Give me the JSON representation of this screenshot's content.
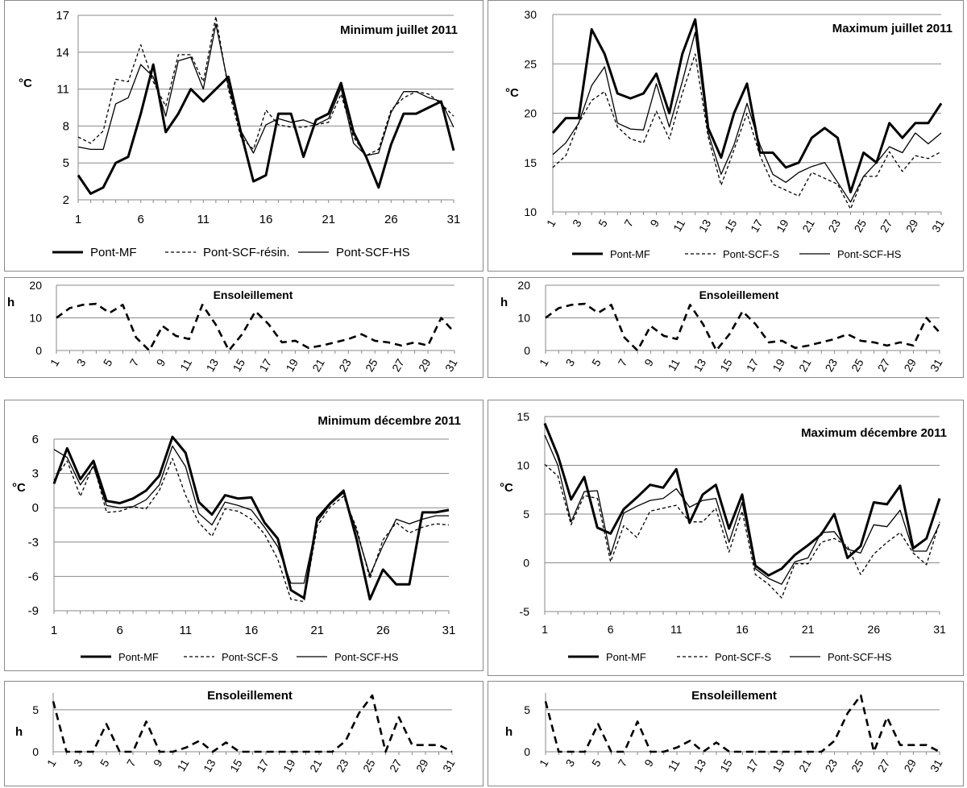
{
  "sun_july": [
    10,
    13,
    14,
    14.3,
    11.5,
    14,
    4,
    0,
    7.5,
    4.5,
    3.5,
    14,
    8,
    0,
    5,
    12,
    8,
    2.5,
    3,
    0.8,
    1.5,
    2.5,
    3.5,
    5,
    3,
    2.5,
    1.5,
    2.5,
    1.5,
    10,
    5.5
  ],
  "sun_dec": [
    6,
    0,
    0,
    0,
    3.3,
    0,
    0,
    3.6,
    0,
    0,
    0.5,
    1.3,
    0,
    1.1,
    0,
    0,
    0,
    0,
    0,
    0,
    0,
    0,
    1.3,
    4.6,
    6.7,
    0,
    4.1,
    0.8,
    0.8,
    0.8,
    0
  ],
  "chart_data": [
    {
      "type": "line",
      "title": "Minimum juillet 2011",
      "ylabel": "°C",
      "ylim": [
        2,
        17
      ],
      "yticks": [
        "2",
        "5",
        "8",
        "11",
        "14",
        "17"
      ],
      "xticks": [
        "1",
        "6",
        "11",
        "16",
        "21",
        "26",
        "31"
      ],
      "x": [
        1,
        2,
        3,
        4,
        5,
        6,
        7,
        8,
        9,
        10,
        11,
        12,
        13,
        14,
        15,
        16,
        17,
        18,
        19,
        20,
        21,
        22,
        23,
        24,
        25,
        26,
        27,
        28,
        29,
        30,
        31
      ],
      "series": [
        {
          "name": "Pont-MF",
          "values": [
            4,
            2.5,
            3,
            5,
            5.5,
            9,
            13,
            7.5,
            9,
            11,
            10,
            11,
            12,
            7.5,
            3.5,
            4,
            9,
            9,
            5.5,
            8.5,
            9,
            11.5,
            7.5,
            5.5,
            3,
            6.5,
            9,
            9,
            9.5,
            10,
            6
          ]
        },
        {
          "name": "Pont-SCF-résin.",
          "values": [
            7.1,
            6.6,
            7.6,
            11.8,
            11.6,
            14.6,
            11.6,
            9.6,
            13.8,
            13.8,
            11.6,
            16.9,
            11,
            7.1,
            6.1,
            9.3,
            8.1,
            7.9,
            7.9,
            8.1,
            8.3,
            10.6,
            7.1,
            5.6,
            6.1,
            9.3,
            10.3,
            10.8,
            10.6,
            9.8,
            8.8
          ]
        },
        {
          "name": "Pont-SCF-HS",
          "values": [
            6.3,
            6.1,
            6.1,
            9.8,
            10.3,
            13,
            12,
            8.8,
            13.3,
            13.6,
            11,
            16.3,
            11.3,
            7.6,
            5.8,
            8.1,
            8.6,
            8.3,
            8.5,
            8.1,
            8.6,
            11.1,
            6.6,
            5.6,
            5.8,
            9.1,
            10.8,
            10.8,
            10.3,
            10,
            7.9
          ]
        }
      ]
    },
    {
      "type": "line",
      "title": "Maximum juillet 2011",
      "ylabel": "°C",
      "ylim": [
        10,
        30
      ],
      "yticks": [
        "10",
        "15",
        "20",
        "25",
        "30"
      ],
      "xticks": [
        "1",
        "3",
        "5",
        "7",
        "9",
        "11",
        "13",
        "15",
        "17",
        "19",
        "21",
        "23",
        "25",
        "27",
        "29",
        "31"
      ],
      "x": [
        1,
        2,
        3,
        4,
        5,
        6,
        7,
        8,
        9,
        10,
        11,
        12,
        13,
        14,
        15,
        16,
        17,
        18,
        19,
        20,
        21,
        22,
        23,
        24,
        25,
        26,
        27,
        28,
        29,
        30,
        31
      ],
      "series": [
        {
          "name": "Pont-MF",
          "values": [
            18,
            19.5,
            19.5,
            28.5,
            26,
            22,
            21.5,
            22,
            24,
            20,
            26,
            29.5,
            18.5,
            15.5,
            20,
            23,
            16,
            16,
            14.5,
            15,
            17.5,
            18.5,
            17.5,
            12,
            16,
            15,
            19,
            17.5,
            19,
            19,
            21
          ]
        },
        {
          "name": "Pont-SCF-S",
          "values": [
            14.5,
            15.7,
            19,
            21.3,
            22.2,
            18.6,
            17.4,
            17,
            20.2,
            17.4,
            22,
            26,
            17.6,
            12.7,
            16.3,
            20,
            15.7,
            12.8,
            12.2,
            11.6,
            14,
            13.4,
            12.8,
            10.3,
            13.6,
            13.6,
            16.1,
            14.1,
            15.7,
            15.4,
            16.1
          ]
        },
        {
          "name": "Pont-SCF-HS",
          "values": [
            15.8,
            17,
            19,
            22.8,
            24.7,
            19,
            18.4,
            18.3,
            23,
            18.6,
            23.2,
            28.2,
            18,
            13.8,
            16.8,
            21,
            16.8,
            13.8,
            13,
            14,
            14.6,
            15,
            13,
            11,
            13.6,
            15,
            16.6,
            16,
            18,
            16.9,
            18
          ]
        }
      ]
    },
    {
      "type": "line",
      "title": "Ensoleillement",
      "ylabel": "h",
      "ylim": [
        0,
        20
      ],
      "yticks": [
        "0",
        "10",
        "20"
      ],
      "xticks": [
        "1",
        "3",
        "5",
        "7",
        "9",
        "11",
        "13",
        "15",
        "17",
        "19",
        "21",
        "23",
        "25",
        "27",
        "29",
        "31"
      ],
      "x": [
        1,
        2,
        3,
        4,
        5,
        6,
        7,
        8,
        9,
        10,
        11,
        12,
        13,
        14,
        15,
        16,
        17,
        18,
        19,
        20,
        21,
        22,
        23,
        24,
        25,
        26,
        27,
        28,
        29,
        30,
        31
      ],
      "series": [
        {
          "name": "Ensoleillement",
          "values": [
            10,
            13,
            14,
            14.3,
            11.5,
            14,
            4,
            0,
            7.5,
            4.5,
            3.5,
            14,
            8,
            0,
            5,
            12,
            8,
            2.5,
            3,
            0.8,
            1.5,
            2.5,
            3.5,
            5,
            3,
            2.5,
            1.5,
            2.5,
            1.5,
            10,
            5.5
          ]
        }
      ]
    },
    {
      "type": "line",
      "title": "Ensoleillement",
      "ylabel": "h",
      "ylim": [
        0,
        20
      ],
      "yticks": [
        "0",
        "10",
        "20"
      ],
      "xticks": [
        "1",
        "3",
        "5",
        "7",
        "9",
        "11",
        "13",
        "15",
        "17",
        "19",
        "21",
        "23",
        "25",
        "27",
        "29",
        "31"
      ],
      "x": [
        1,
        2,
        3,
        4,
        5,
        6,
        7,
        8,
        9,
        10,
        11,
        12,
        13,
        14,
        15,
        16,
        17,
        18,
        19,
        20,
        21,
        22,
        23,
        24,
        25,
        26,
        27,
        28,
        29,
        30,
        31
      ],
      "series": [
        {
          "name": "Ensoleillement",
          "values": [
            10,
            13,
            14,
            14.3,
            11.5,
            14,
            4,
            0,
            7.5,
            4.5,
            3.5,
            14,
            8,
            0,
            5,
            12,
            8,
            2.5,
            3,
            0.8,
            1.5,
            2.5,
            3.5,
            5,
            3,
            2.5,
            1.5,
            2.5,
            1.5,
            10,
            5.5
          ]
        }
      ]
    },
    {
      "type": "line",
      "title": "Minimum décembre 2011",
      "ylabel": "°C",
      "ylim": [
        -9,
        6
      ],
      "yticks": [
        "-9",
        "-6",
        "-3",
        "0",
        "3",
        "6"
      ],
      "xticks": [
        "1",
        "6",
        "11",
        "16",
        "21",
        "26",
        "31"
      ],
      "x": [
        1,
        2,
        3,
        4,
        5,
        6,
        7,
        8,
        9,
        10,
        11,
        12,
        13,
        14,
        15,
        16,
        17,
        18,
        19,
        20,
        21,
        22,
        23,
        24,
        25,
        26,
        27,
        28,
        29,
        30,
        31
      ],
      "series": [
        {
          "name": "Pont-MF",
          "values": [
            2.1,
            5.2,
            2.5,
            4.1,
            0.6,
            0.4,
            0.8,
            1.5,
            2.8,
            6.2,
            4.8,
            0.5,
            -0.6,
            1.1,
            0.8,
            0.9,
            -1.3,
            -2.7,
            -7.2,
            -7.9,
            -0.9,
            0.4,
            1.5,
            -2.8,
            -8,
            -5.4,
            -6.7,
            -6.7,
            -0.4,
            -0.4,
            -0.2
          ]
        },
        {
          "name": "Pont-SCF-S",
          "values": [
            2.4,
            4.1,
            1,
            3.8,
            -0.4,
            -0.3,
            0.1,
            -0.1,
            1.5,
            4.3,
            1.1,
            -1.3,
            -2.5,
            -0.1,
            -0.3,
            -1,
            -2.3,
            -4.5,
            -8,
            -8.2,
            -1.6,
            0.1,
            1,
            -1.8,
            -6.2,
            -2.8,
            -1.3,
            -2.2,
            -1.7,
            -1.4,
            -1.5
          ]
        },
        {
          "name": "Pont-SCF-HS",
          "values": [
            5.1,
            4.4,
            2,
            3.6,
            0.2,
            0,
            0.1,
            0.7,
            2,
            5.4,
            3.6,
            -0.5,
            -1.5,
            0.5,
            0.2,
            -0.2,
            -1.7,
            -3.4,
            -6.6,
            -6.6,
            -1.2,
            0.3,
            1.3,
            -2.1,
            -5.9,
            -3.3,
            -1,
            -1.4,
            -1,
            -0.7,
            -0.7
          ]
        }
      ]
    },
    {
      "type": "line",
      "title": "Maximum décembre 2011",
      "ylabel": "°C",
      "ylim": [
        -5,
        15
      ],
      "yticks": [
        "-5",
        "0",
        "5",
        "10",
        "15"
      ],
      "xticks": [
        "1",
        "6",
        "11",
        "16",
        "21",
        "26",
        "31"
      ],
      "x": [
        1,
        2,
        3,
        4,
        5,
        6,
        7,
        8,
        9,
        10,
        11,
        12,
        13,
        14,
        15,
        16,
        17,
        18,
        19,
        20,
        21,
        22,
        23,
        24,
        25,
        26,
        27,
        28,
        29,
        30,
        31
      ],
      "series": [
        {
          "name": "Pont-MF",
          "values": [
            14.3,
            11,
            6.5,
            8.8,
            3.6,
            3,
            5.5,
            6.7,
            8,
            7.7,
            9.6,
            4.1,
            7,
            8,
            3.5,
            7,
            -0.3,
            -1.3,
            -0.6,
            0.8,
            1.8,
            2.9,
            5,
            0.5,
            1.7,
            6.2,
            6,
            7.9,
            1.5,
            2.5,
            6.6
          ]
        },
        {
          "name": "Pont-SCF-S",
          "values": [
            10.1,
            8.9,
            3.9,
            6.9,
            6.6,
            0.1,
            3.8,
            2.6,
            5.3,
            5.6,
            5.9,
            4.2,
            4.2,
            5.6,
            1.1,
            5.3,
            -1.2,
            -2.2,
            -3.6,
            -0.1,
            -0.1,
            2.1,
            2.5,
            1.7,
            -1.2,
            0.9,
            2.1,
            3.1,
            1,
            -0.2,
            4.2
          ]
        },
        {
          "name": "Pont-SCF-HS",
          "values": [
            13.1,
            10,
            4.2,
            7.3,
            7.4,
            0.8,
            5.1,
            5.8,
            6.4,
            6.6,
            7.6,
            5.7,
            6.4,
            6.6,
            2.1,
            6.2,
            -0.6,
            -1.6,
            -2.2,
            0.1,
            0.5,
            3.1,
            3.2,
            1.4,
            1,
            3.9,
            3.7,
            5.4,
            1.2,
            1.2,
            4
          ]
        }
      ]
    },
    {
      "type": "line",
      "title": "Ensoleillement",
      "ylabel": "h",
      "ylim": [
        0,
        7
      ],
      "yticks": [
        "0",
        "5"
      ],
      "xticks": [
        "1",
        "3",
        "5",
        "7",
        "9",
        "11",
        "13",
        "15",
        "17",
        "19",
        "21",
        "23",
        "25",
        "27",
        "29",
        "31"
      ],
      "x": [
        1,
        2,
        3,
        4,
        5,
        6,
        7,
        8,
        9,
        10,
        11,
        12,
        13,
        14,
        15,
        16,
        17,
        18,
        19,
        20,
        21,
        22,
        23,
        24,
        25,
        26,
        27,
        28,
        29,
        30,
        31
      ],
      "series": [
        {
          "name": "Ensoleillement",
          "values": [
            6,
            0,
            0,
            0,
            3.3,
            0,
            0,
            3.6,
            0,
            0,
            0.5,
            1.3,
            0,
            1.1,
            0,
            0,
            0,
            0,
            0,
            0,
            0,
            0,
            1.3,
            4.6,
            6.7,
            0,
            4.1,
            0.8,
            0.8,
            0.8,
            0
          ]
        }
      ]
    },
    {
      "type": "line",
      "title": "Ensoleillement",
      "ylabel": "h",
      "ylim": [
        0,
        7
      ],
      "yticks": [
        "0",
        "5"
      ],
      "xticks": [
        "1",
        "3",
        "5",
        "7",
        "9",
        "11",
        "13",
        "15",
        "17",
        "19",
        "21",
        "23",
        "25",
        "27",
        "29",
        "31"
      ],
      "x": [
        1,
        2,
        3,
        4,
        5,
        6,
        7,
        8,
        9,
        10,
        11,
        12,
        13,
        14,
        15,
        16,
        17,
        18,
        19,
        20,
        21,
        22,
        23,
        24,
        25,
        26,
        27,
        28,
        29,
        30,
        31
      ],
      "series": [
        {
          "name": "Ensoleillement",
          "values": [
            6,
            0,
            0,
            0,
            3.3,
            0,
            0,
            3.6,
            0,
            0,
            0.5,
            1.3,
            0,
            1.1,
            0,
            0,
            0,
            0,
            0,
            0,
            0,
            0,
            1.3,
            4.6,
            6.7,
            0,
            4.1,
            0.8,
            0.8,
            0.8,
            0
          ]
        }
      ]
    }
  ]
}
